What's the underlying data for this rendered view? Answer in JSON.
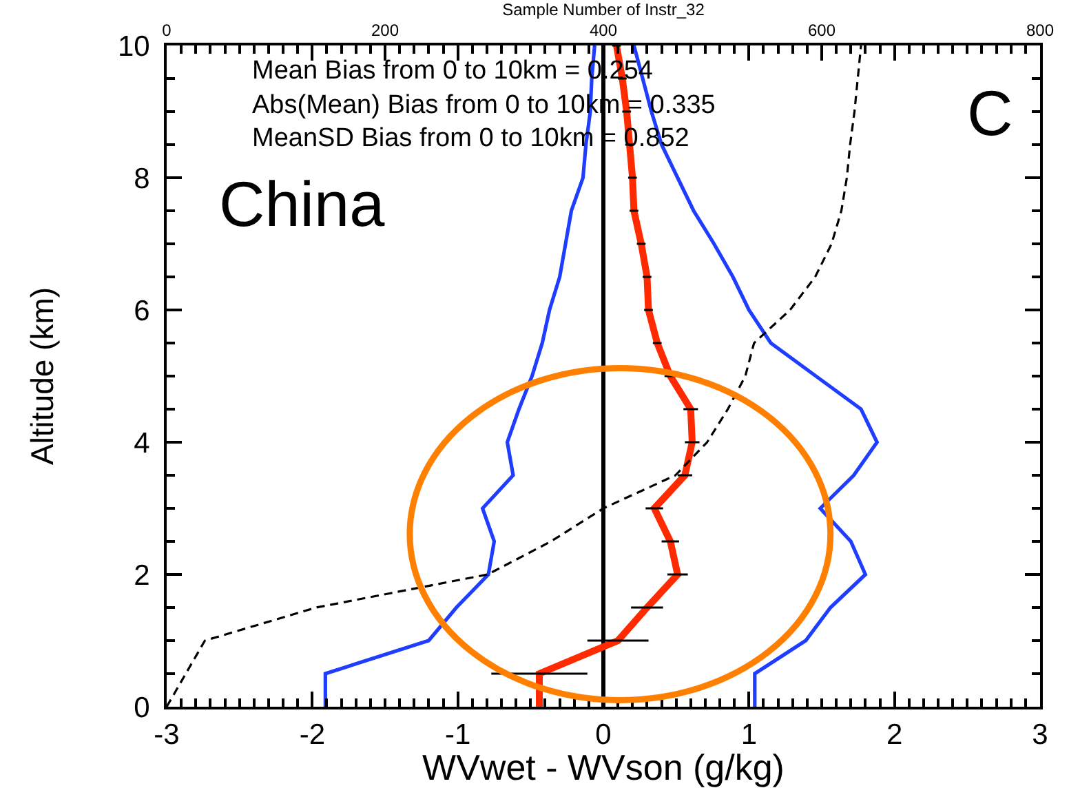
{
  "chart_data": {
    "type": "line",
    "xlabel": "WVwet - WVson (g/kg)",
    "ylabel": "Altitude (km)",
    "x2label": "Sample Number of Instr_32",
    "xlim": [
      -3,
      3
    ],
    "xticks": [
      -3,
      {
        "value": -2.9,
        "label": null
      },
      {
        "value": -2.8,
        "label": null
      },
      {
        "value": -2.7,
        "label": null
      },
      {
        "value": -2.6,
        "label": null
      },
      {
        "value": -2.5,
        "label": null
      },
      {
        "value": -2.4,
        "label": null
      },
      {
        "value": -2.3,
        "label": null
      },
      {
        "value": -2.2,
        "label": null
      },
      {
        "value": -2.1,
        "label": null
      },
      -2,
      {
        "value": -1.9,
        "label": null
      },
      {
        "value": -1.8,
        "label": null
      },
      {
        "value": -1.7,
        "label": null
      },
      {
        "value": -1.6,
        "label": null
      },
      {
        "value": -1.5,
        "label": null
      },
      {
        "value": -1.4,
        "label": null
      },
      {
        "value": -1.3,
        "label": null
      },
      {
        "value": -1.2,
        "label": null
      },
      {
        "value": -1.1,
        "label": null
      },
      -1,
      {
        "value": -0.9,
        "label": null
      },
      {
        "value": -0.8,
        "label": null
      },
      {
        "value": -0.7,
        "label": null
      },
      {
        "value": -0.6,
        "label": null
      },
      {
        "value": -0.5,
        "label": null
      },
      {
        "value": -0.4,
        "label": null
      },
      {
        "value": -0.3,
        "label": null
      },
      {
        "value": -0.2,
        "label": null
      },
      {
        "value": -0.1,
        "label": null
      },
      0,
      {
        "value": 0.1,
        "label": null
      },
      {
        "value": 0.2,
        "label": null
      },
      {
        "value": 0.3,
        "label": null
      },
      {
        "value": 0.4,
        "label": null
      },
      {
        "value": 0.5,
        "label": null
      },
      {
        "value": 0.6,
        "label": null
      },
      {
        "value": 0.7,
        "label": null
      },
      {
        "value": 0.8,
        "label": null
      },
      {
        "value": 0.9,
        "label": null
      },
      1,
      {
        "value": 1.1,
        "label": null
      },
      {
        "value": 1.2,
        "label": null
      },
      {
        "value": 1.3,
        "label": null
      },
      {
        "value": 1.4,
        "label": null
      },
      {
        "value": 1.5,
        "label": null
      },
      {
        "value": 1.6,
        "label": null
      },
      {
        "value": 1.7,
        "label": null
      },
      {
        "value": 1.8,
        "label": null
      },
      {
        "value": 1.9,
        "label": null
      },
      2,
      {
        "value": 2.1,
        "label": null
      },
      {
        "value": 2.2,
        "label": null
      },
      {
        "value": 2.3,
        "label": null
      },
      {
        "value": 2.4,
        "label": null
      },
      {
        "value": 2.5,
        "label": null
      },
      {
        "value": 2.6,
        "label": null
      },
      {
        "value": 2.7,
        "label": null
      },
      {
        "value": 2.8,
        "label": null
      },
      {
        "value": 2.9,
        "label": null
      },
      3
    ],
    "ylim": [
      0,
      10
    ],
    "yticks": [
      0,
      {
        "value": 0.5,
        "label": null
      },
      {
        "value": 1,
        "label": null
      },
      {
        "value": 1.5,
        "label": null
      },
      2,
      {
        "value": 2.5,
        "label": null
      },
      {
        "value": 3,
        "label": null
      },
      {
        "value": 3.5,
        "label": null
      },
      4,
      {
        "value": 4.5,
        "label": null
      },
      {
        "value": 5,
        "label": null
      },
      {
        "value": 5.5,
        "label": null
      },
      6,
      {
        "value": 6.5,
        "label": null
      },
      {
        "value": 7,
        "label": null
      },
      {
        "value": 7.5,
        "label": null
      },
      8,
      {
        "value": 8.5,
        "label": null
      },
      {
        "value": 9,
        "label": null
      },
      {
        "value": 9.5,
        "label": null
      },
      10
    ],
    "x2lim": [
      0,
      800
    ],
    "x2ticks": [
      0,
      200,
      400,
      600,
      800
    ],
    "series": [
      {
        "color": "#1f3dff",
        "x": [
          -1.91,
          -1.91,
          -1.2,
          -1.01,
          -0.79,
          -0.75,
          -0.83,
          -0.62,
          -0.66,
          -0.58,
          -0.49,
          -0.42,
          -0.37,
          -0.3,
          -0.26,
          -0.22,
          -0.14,
          -0.12,
          -0.09,
          -0.08,
          -0.06
        ],
        "values": [
          0,
          0.5,
          1,
          1.5,
          2,
          2.5,
          3,
          3.5,
          4,
          4.5,
          5,
          5.5,
          6,
          6.5,
          7,
          7.5,
          8,
          8.5,
          9,
          9.5,
          10
        ]
      },
      {
        "color": "#1f3dff",
        "x": [
          1.04,
          1.04,
          1.39,
          1.56,
          1.8,
          1.7,
          1.49,
          1.72,
          1.88,
          1.77,
          1.46,
          1.15,
          1.0,
          0.89,
          0.76,
          0.62,
          0.51,
          0.4,
          0.33,
          0.27,
          0.21
        ],
        "values": [
          0,
          0.5,
          1,
          1.5,
          2,
          2.5,
          3,
          3.5,
          4,
          4.5,
          5,
          5.5,
          6,
          6.5,
          7,
          7.5,
          8,
          8.5,
          9,
          9.5,
          10
        ]
      },
      {
        "color": "#000000",
        "axis": "x2",
        "line_style": "dashed",
        "x": [
          0,
          35,
          137,
          294,
          352,
          400,
          466,
          495,
          514,
          530,
          538,
          571,
          594,
          609,
          618,
          623,
          626,
          630,
          633,
          636
        ],
        "values": [
          0,
          1,
          1.5,
          2,
          2.5,
          3,
          3.5,
          4,
          4.5,
          5,
          5.5,
          6,
          6.5,
          7,
          7.5,
          8,
          8.5,
          9,
          9.5,
          10
        ]
      },
      {
        "color": "#ff2a00",
        "x": [
          -0.44,
          -0.44,
          0.1,
          0.3,
          0.51,
          0.46,
          0.35,
          0.56,
          0.61,
          0.6,
          0.46,
          0.37,
          0.31,
          0.3,
          0.26,
          0.21,
          0.2,
          0.18,
          0.16,
          0.13,
          0.09
        ],
        "values": [
          0,
          0.5,
          1,
          1.5,
          2,
          2.5,
          3,
          3.5,
          4,
          4.5,
          5,
          5.5,
          6,
          6.5,
          7,
          7.5,
          8,
          8.5,
          9,
          9.5,
          10
        ],
        "xerrors": [
          null,
          0.33,
          0.21,
          0.11,
          0.07,
          0.06,
          0.06,
          0.05,
          0.05,
          0.05,
          0.04,
          0.03,
          0.03,
          0.03,
          0.03,
          0.03,
          0.03,
          0.03,
          0.03,
          0.03,
          0.03
        ]
      }
    ],
    "ref_lines": [
      {
        "axis": "x",
        "value": 0,
        "color": "#000000"
      }
    ],
    "annotations": [
      "Mean Bias from 0 to 10km = 0.254",
      "Abs(Mean) Bias from 0 to 10km = 0.335",
      "MeanSD Bias from 0 to 10km = 0.852",
      "China",
      "C"
    ]
  }
}
